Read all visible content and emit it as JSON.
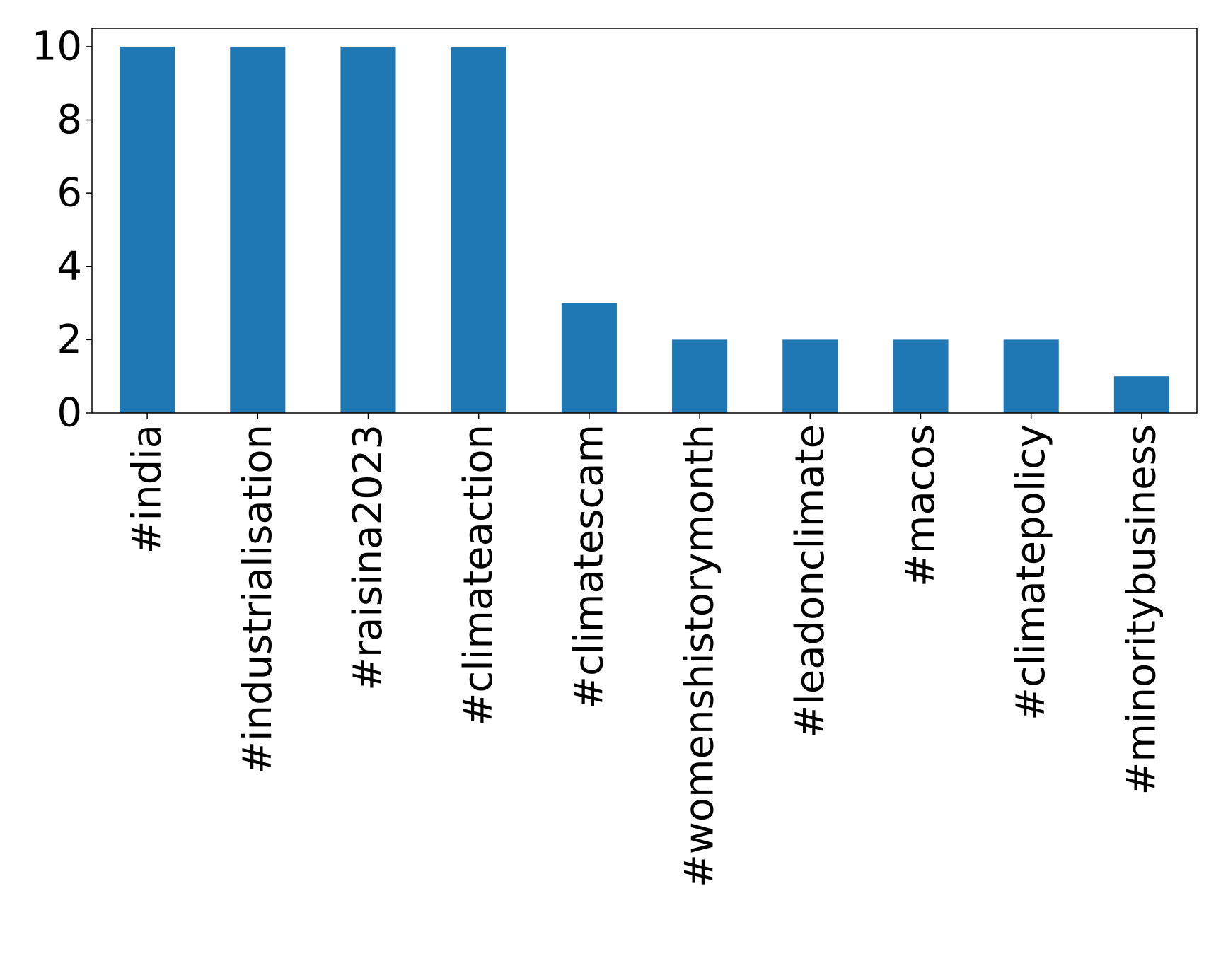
{
  "chart_data": {
    "type": "bar",
    "title": "",
    "xlabel": "",
    "ylabel": "",
    "categories": [
      "#india",
      "#industrialisation",
      "#raisina2023",
      "#climateaction",
      "#climatescam",
      "#womenshistorymonth",
      "#leadonclimate",
      "#macos",
      "#climatepolicy",
      "#minoritybusiness"
    ],
    "values": [
      10,
      10,
      10,
      10,
      3,
      2,
      2,
      2,
      2,
      1
    ],
    "ylim": [
      0,
      10.5
    ],
    "yticks": [
      0,
      2,
      4,
      6,
      8,
      10
    ],
    "bar_color": "#1f77b4",
    "grid": false,
    "legend": "none",
    "x_tick_rotation": "vertical"
  }
}
